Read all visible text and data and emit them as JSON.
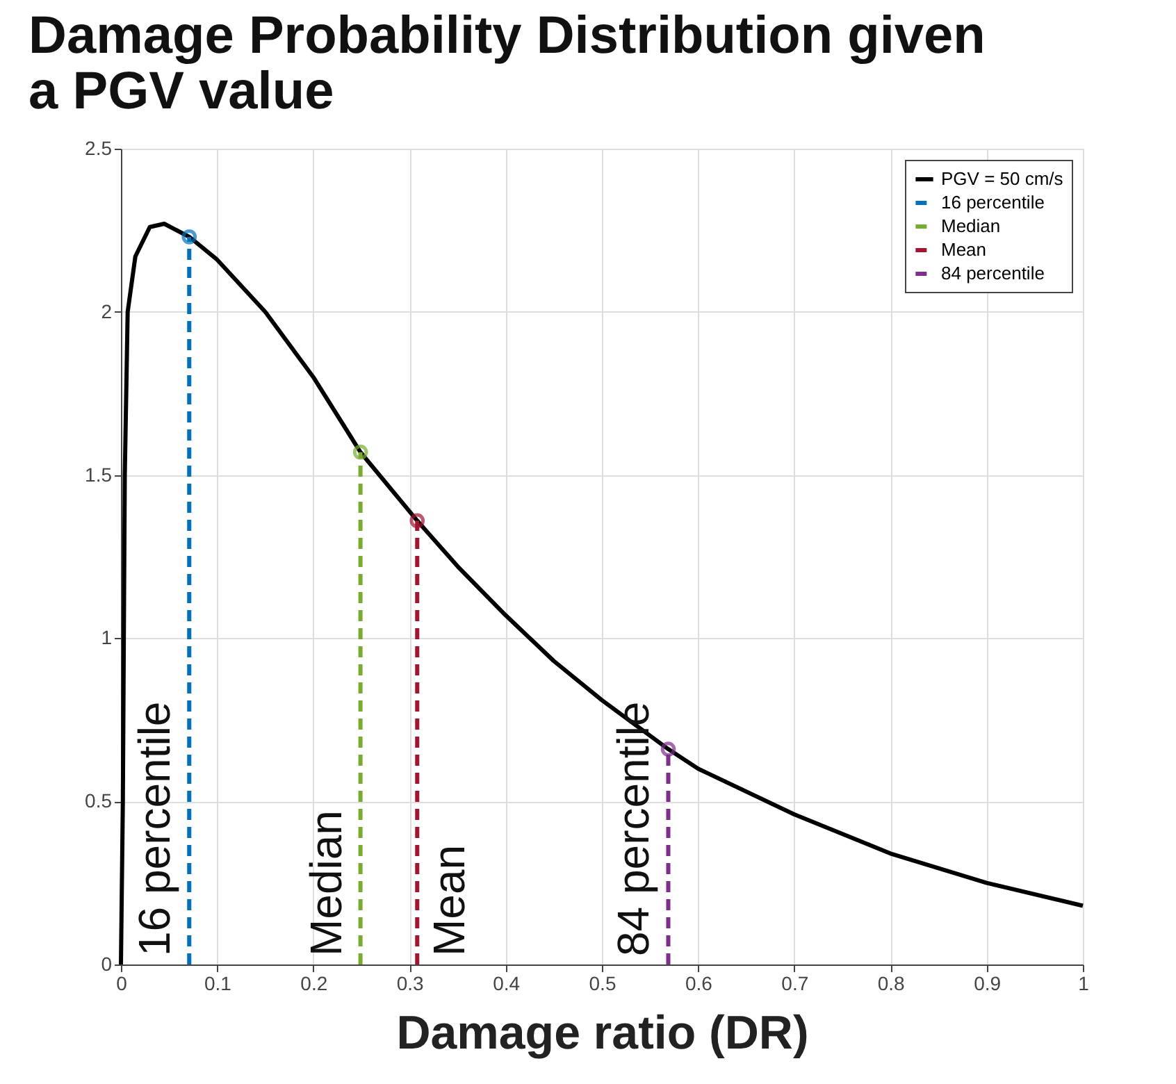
{
  "chart_data": {
    "type": "line",
    "title": "Damage Probability Distribution given\na PGV value",
    "xlabel": "Damage ratio (DR)",
    "xlim": [
      0,
      1
    ],
    "ylim": [
      0,
      2.5
    ],
    "xticks": [
      0,
      0.1,
      0.2,
      0.3,
      0.4,
      0.5,
      0.6,
      0.7,
      0.8,
      0.9,
      1
    ],
    "yticks": [
      0,
      0.5,
      1,
      1.5,
      2,
      2.5
    ],
    "grid": true,
    "legend": "top right",
    "series": [
      {
        "name": "PGV = 50 cm/s",
        "color": "#000000",
        "line_style": "solid",
        "marker": "none",
        "x": [
          0,
          0.002,
          0.004,
          0.007,
          0.015,
          0.03,
          0.045,
          0.071,
          0.1,
          0.15,
          0.2,
          0.249,
          0.308,
          0.35,
          0.4,
          0.45,
          0.5,
          0.569,
          0.6,
          0.7,
          0.8,
          0.9,
          1.0
        ],
        "values": [
          0,
          0.5,
          1.5,
          2.0,
          2.17,
          2.26,
          2.27,
          2.23,
          2.16,
          2.0,
          1.8,
          1.57,
          1.36,
          1.22,
          1.07,
          0.93,
          0.81,
          0.66,
          0.6,
          0.46,
          0.34,
          0.25,
          0.18
        ]
      },
      {
        "name": "16 percentile",
        "color": "#0072bd",
        "line_style": "dashed",
        "marker": "circle",
        "x": [
          0.071,
          0.071
        ],
        "values": [
          0,
          2.23
        ]
      },
      {
        "name": "Median",
        "color": "#77ac30",
        "line_style": "dashed",
        "marker": "circle",
        "x": [
          0.249,
          0.249
        ],
        "values": [
          0,
          1.57
        ]
      },
      {
        "name": "Mean",
        "color": "#a2142f",
        "line_style": "dashed",
        "marker": "circle",
        "x": [
          0.308,
          0.308
        ],
        "values": [
          0,
          1.36
        ]
      },
      {
        "name": "84 percentile",
        "color": "#7e2f8e",
        "line_style": "dashed",
        "marker": "circle",
        "x": [
          0.569,
          0.569
        ],
        "values": [
          0,
          0.66
        ]
      }
    ],
    "annotations": [
      "16 percentile",
      "Median",
      "Mean",
      "84 percentile"
    ]
  }
}
